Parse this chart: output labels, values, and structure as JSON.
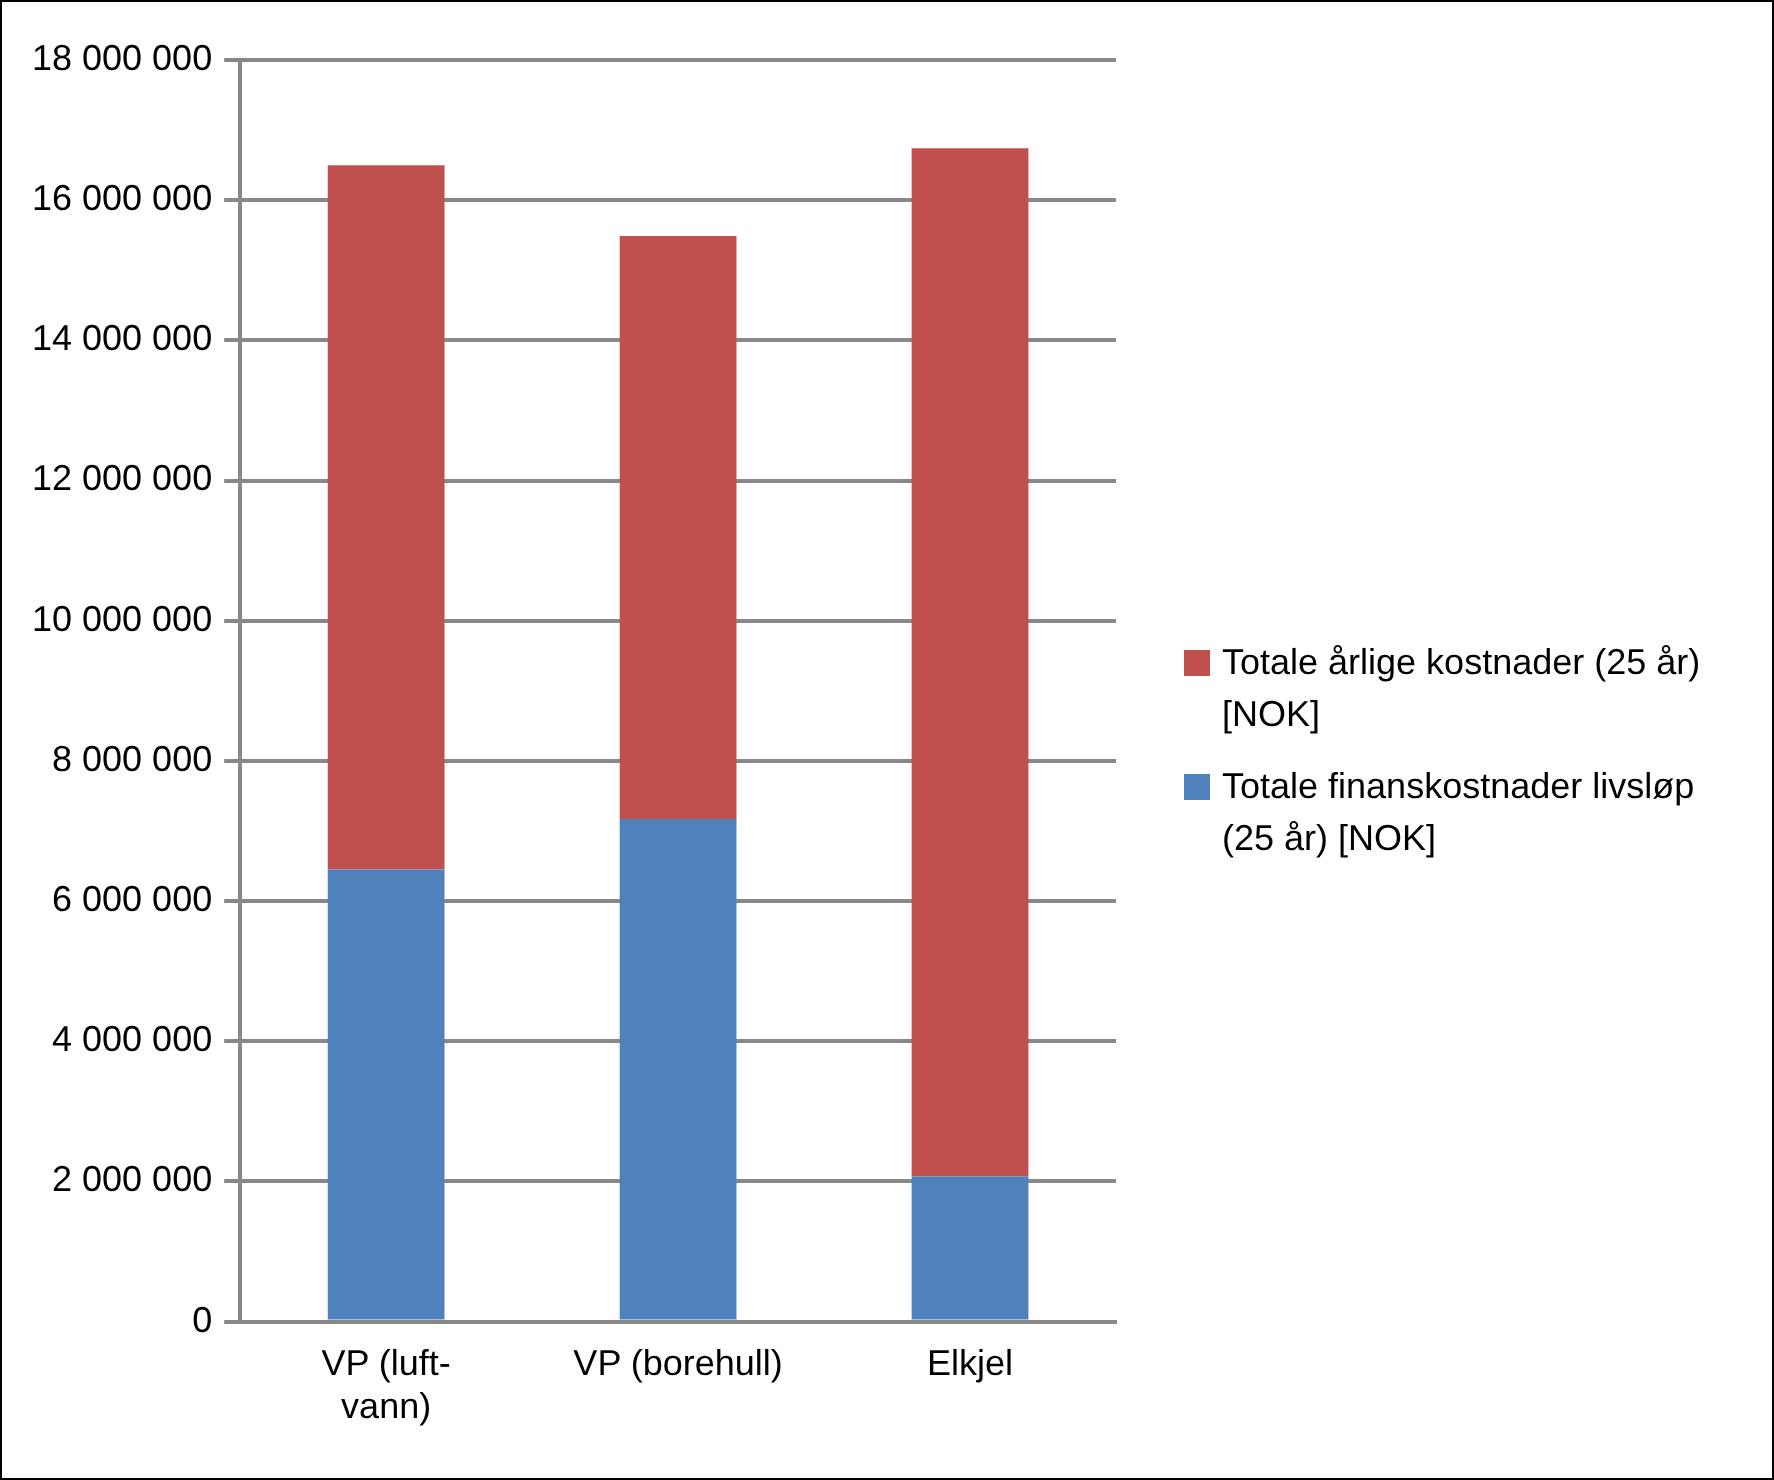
{
  "chart_data": {
    "type": "bar",
    "stacked": true,
    "categories": [
      "VP (luft-vann)",
      "VP (borehull)",
      "Elkjel"
    ],
    "series": [
      {
        "name": "Totale finanskostnader livsløp (25 år) [NOK]",
        "color": "#4f81bd",
        "values": [
          6450000,
          7170000,
          2070000
        ]
      },
      {
        "name": "Totale årlige kostnader (25 år) [NOK]",
        "color": "#c0504d",
        "values": [
          10050000,
          8320000,
          14670000
        ]
      }
    ],
    "ylim": [
      0,
      18000000
    ],
    "yticks": [
      {
        "value": 0,
        "label": "0"
      },
      {
        "value": 2000000,
        "label": "2 000 000"
      },
      {
        "value": 4000000,
        "label": "4 000 000"
      },
      {
        "value": 6000000,
        "label": "6 000 000"
      },
      {
        "value": 8000000,
        "label": "8 000 000"
      },
      {
        "value": 10000000,
        "label": "10 000 000"
      },
      {
        "value": 12000000,
        "label": "12 000 000"
      },
      {
        "value": 14000000,
        "label": "14 000 000"
      },
      {
        "value": 16000000,
        "label": "16 000 000"
      },
      {
        "value": 18000000,
        "label": "18 000 000"
      }
    ],
    "grid": "y",
    "legend": "right"
  }
}
